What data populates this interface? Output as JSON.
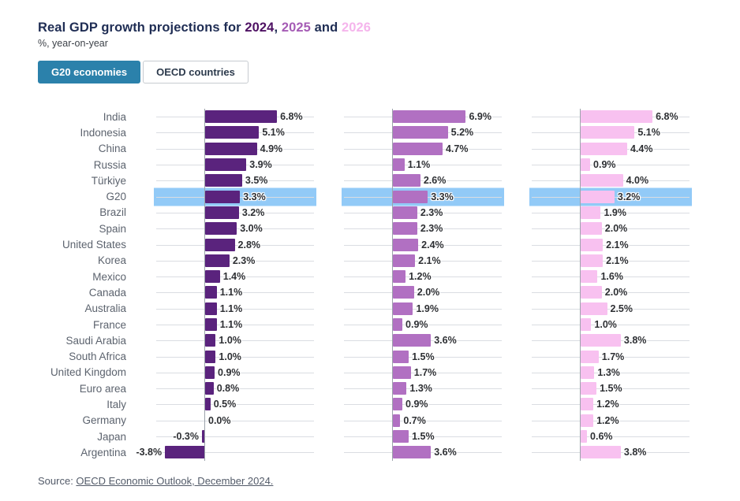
{
  "header": {
    "title_prefix": "Real GDP growth projections for ",
    "year_2024": "2024",
    "comma_sep": ", ",
    "and_sep": " and ",
    "year_2025": "2025",
    "year_2026": "2026",
    "subtitle": "%, year-on-year"
  },
  "toggle": {
    "g20_label": "G20 economies",
    "oecd_label": "OECD countries"
  },
  "source": {
    "prefix": "Source: ",
    "link_text": "OECD Economic Outlook, December 2024."
  },
  "colors": {
    "bar_2024": "#5a237d",
    "bar_2025": "#b170c2",
    "bar_2026": "#f8c1f0",
    "title_2024": "#4e1163",
    "title_2025": "#a55cb5",
    "title_2026": "#f5b5ec",
    "highlight_band": "#92caf7",
    "active_button_bg": "#2b81ab",
    "title_text": "#1f2d54"
  },
  "chart_data": {
    "type": "bar",
    "orientation": "horizontal",
    "title": "Real GDP growth projections for 2024, 2025 and 2026",
    "subtitle": "%, year-on-year",
    "value_suffix": "%",
    "grid": true,
    "legend_position": "colored-years-in-title",
    "xlim": [
      -4.6,
      8.2
    ],
    "highlight_category": "G20",
    "categories": [
      "India",
      "Indonesia",
      "China",
      "Russia",
      "Türkiye",
      "G20",
      "Brazil",
      "Spain",
      "United States",
      "Korea",
      "Mexico",
      "Canada",
      "Australia",
      "France",
      "Saudi Arabia",
      "South Africa",
      "United Kingdom",
      "Euro area",
      "Italy",
      "Germany",
      "Japan",
      "Argentina"
    ],
    "series": [
      {
        "name": "2024",
        "color": "#5a237d",
        "values": [
          6.8,
          5.1,
          4.9,
          3.9,
          3.5,
          3.3,
          3.2,
          3.0,
          2.8,
          2.3,
          1.4,
          1.1,
          1.1,
          1.1,
          1.0,
          1.0,
          0.9,
          0.8,
          0.5,
          0.0,
          -0.3,
          -3.8
        ]
      },
      {
        "name": "2025",
        "color": "#b170c2",
        "values": [
          6.9,
          5.2,
          4.7,
          1.1,
          2.6,
          3.3,
          2.3,
          2.3,
          2.4,
          2.1,
          1.2,
          2.0,
          1.9,
          0.9,
          3.6,
          1.5,
          1.7,
          1.3,
          0.9,
          0.7,
          1.5,
          3.6
        ]
      },
      {
        "name": "2026",
        "color": "#f8c1f0",
        "values": [
          6.8,
          5.1,
          4.4,
          0.9,
          4.0,
          3.2,
          1.9,
          2.0,
          2.1,
          2.1,
          1.6,
          2.0,
          2.5,
          1.0,
          3.8,
          1.7,
          1.3,
          1.5,
          1.2,
          1.2,
          0.6,
          3.8
        ]
      }
    ]
  }
}
